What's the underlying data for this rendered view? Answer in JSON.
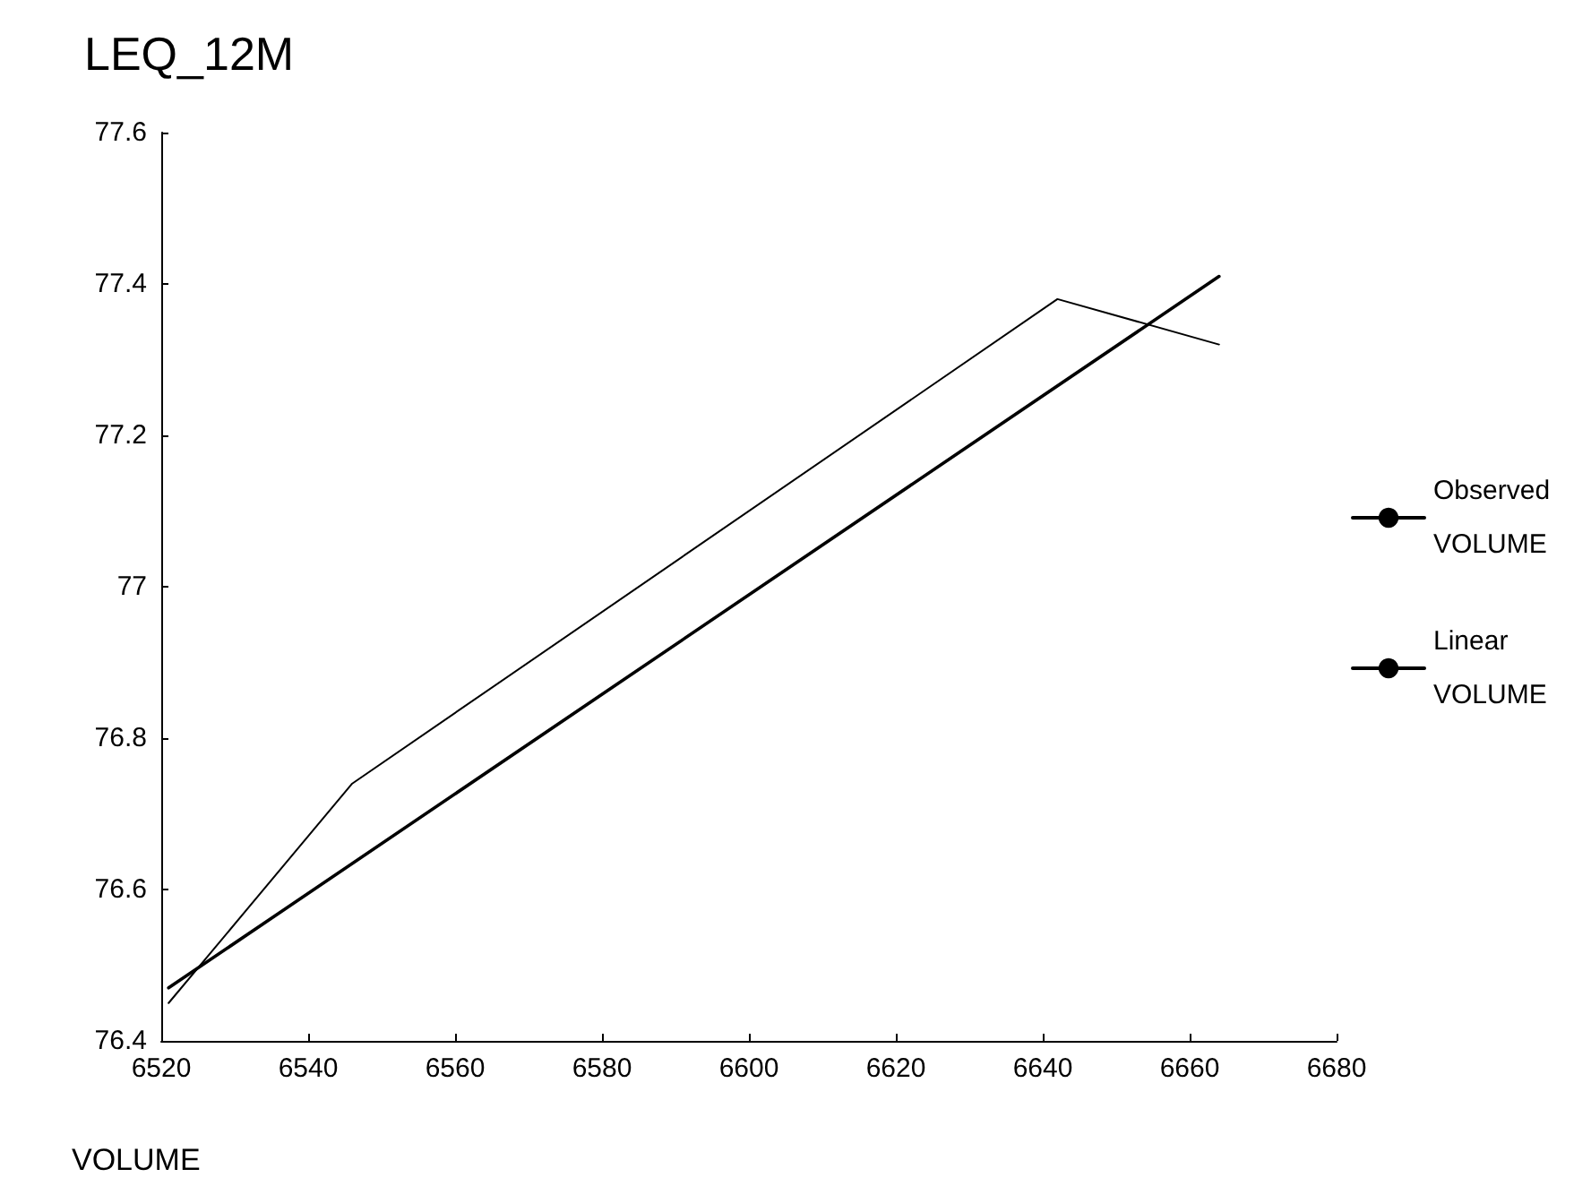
{
  "chart_data": {
    "type": "line",
    "title": "LEQ_12M",
    "xlabel": "VOLUME",
    "xlim": [
      6520,
      6680
    ],
    "xticks": [
      6520,
      6540,
      6560,
      6580,
      6600,
      6620,
      6640,
      6660,
      6680
    ],
    "ylim": [
      76.4,
      77.6
    ],
    "yticks": [
      76.4,
      76.6,
      76.8,
      77.0,
      77.2,
      77.4,
      77.6
    ],
    "grid": false,
    "legend": "right",
    "marker": "none",
    "series": [
      {
        "name": "Observed VOLUME",
        "color": "#000000",
        "x": [
          6521,
          6546,
          6642,
          6664
        ],
        "values": [
          76.45,
          76.74,
          77.38,
          77.32
        ]
      },
      {
        "name": "Linear VOLUME",
        "color": "#000000",
        "x": [
          6521,
          6664
        ],
        "values": [
          76.47,
          77.41
        ]
      }
    ]
  }
}
